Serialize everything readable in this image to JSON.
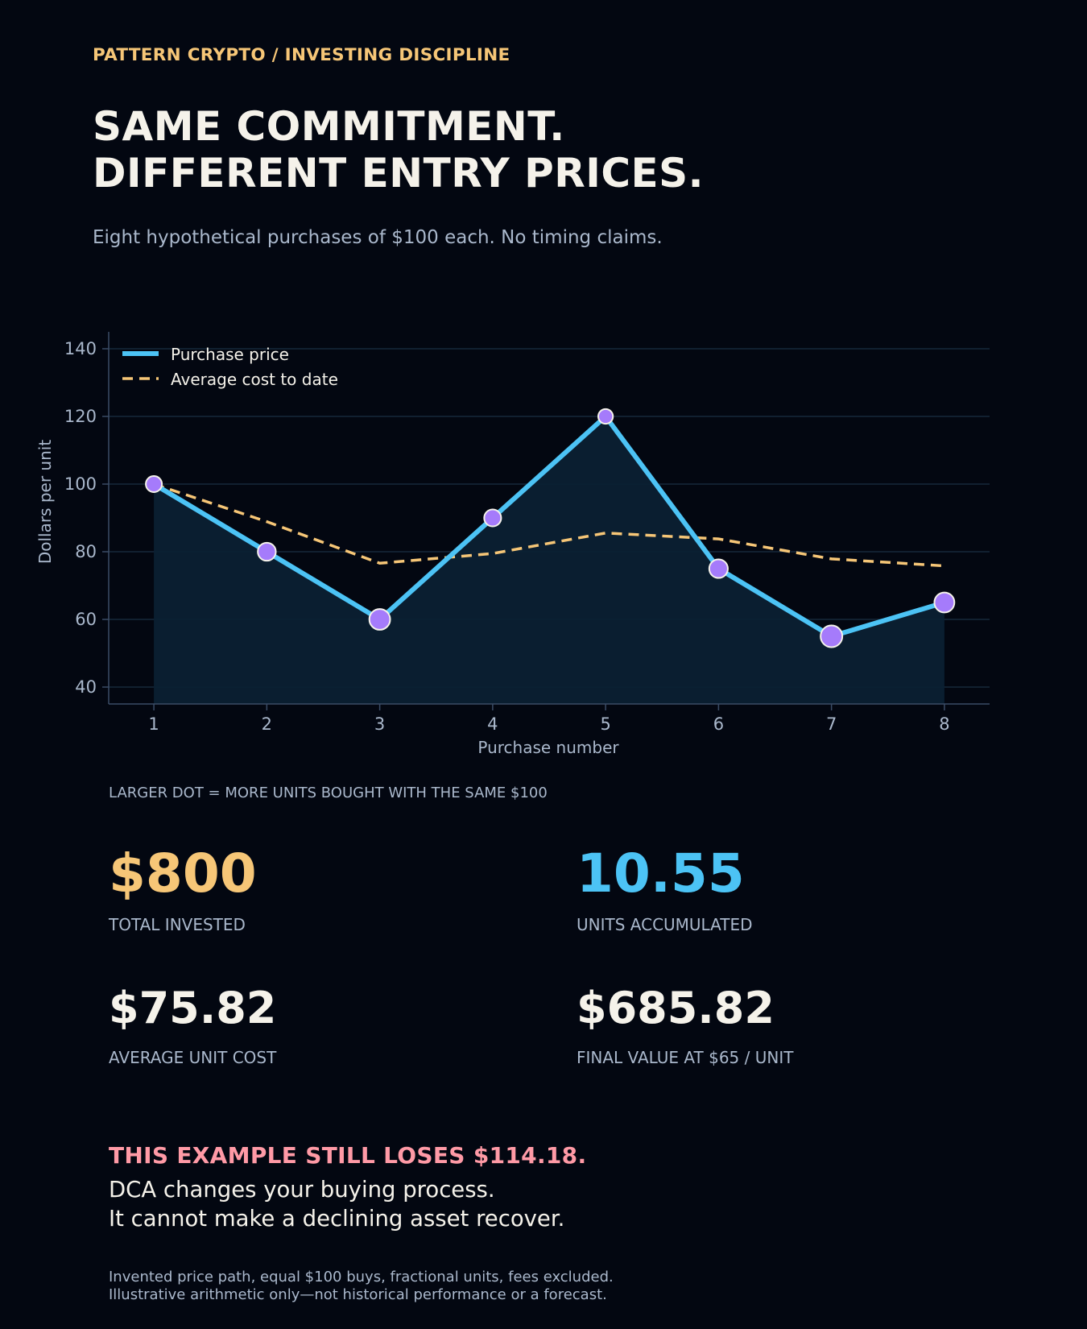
{
  "header": {
    "breadcrumb": "PATTERN CRYPTO  /  INVESTING DISCIPLINE",
    "title_line1": "SAME COMMITMENT.",
    "title_line2": "DIFFERENT ENTRY PRICES.",
    "subtitle": "Eight hypothetical purchases of $100 each. No timing claims."
  },
  "chart_data": {
    "type": "line",
    "x": [
      1,
      2,
      3,
      4,
      5,
      6,
      7,
      8
    ],
    "series": [
      {
        "name": "Purchase price",
        "values": [
          100,
          80,
          60,
          90,
          120,
          75,
          55,
          65
        ],
        "color": "#4cc3f5",
        "style": "solid",
        "markers": "units bought"
      },
      {
        "name": "Average cost to date",
        "values": [
          100,
          88.89,
          76.6,
          79.47,
          85.53,
          83.79,
          77.88,
          75.82
        ],
        "color": "#f6c677",
        "style": "dashed"
      }
    ],
    "xlabel": "Purchase number",
    "ylabel": "Dollars per unit",
    "xticks": [
      "1",
      "2",
      "3",
      "4",
      "5",
      "6",
      "7",
      "8"
    ],
    "yticks": [
      "40",
      "60",
      "80",
      "100",
      "120",
      "140"
    ],
    "xlim": [
      0.6,
      8.4
    ],
    "ylim": [
      35,
      145
    ],
    "grid": "horizontal",
    "legend_position": "top-left",
    "marker_color": "#a57bfb"
  },
  "chart_note": "LARGER DOT = MORE UNITS BOUGHT WITH THE SAME $100",
  "stats": [
    {
      "value": "$800",
      "label": "TOTAL INVESTED",
      "color": "#f6c677"
    },
    {
      "value": "10.55",
      "label": "UNITS ACCUMULATED",
      "color": "#4cc3f5"
    },
    {
      "value": "$75.82",
      "label": "AVERAGE UNIT COST",
      "color": "#f5f2ea"
    },
    {
      "value": "$685.82",
      "label": "FINAL VALUE AT $65 / UNIT",
      "color": "#f5f2ea"
    }
  ],
  "warning": {
    "headline": "THIS EXAMPLE STILL LOSES $114.18.",
    "line1": "DCA changes your buying process.",
    "line2": "It cannot make a declining asset recover."
  },
  "footer": {
    "line1": "Invented price path, equal $100 buys, fractional units, fees excluded.",
    "line2": "Illustrative arithmetic only—not historical performance or a forecast."
  }
}
